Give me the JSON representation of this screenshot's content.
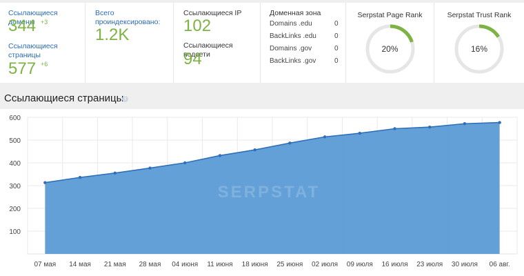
{
  "summary": {
    "referring_domains": {
      "label": "Ссылающиеся домены",
      "value": "344",
      "delta": "+3"
    },
    "referring_pages": {
      "label": "Ссылающиеся страницы",
      "value": "577",
      "delta": "+6"
    },
    "total_indexed": {
      "label": "Всего проиндексировано:",
      "value": "1.2K"
    },
    "referring_ips": {
      "label": "Ссылающиеся IP",
      "value": "102"
    },
    "referring_subnets": {
      "label": "Ссылающиеся подсети",
      "value": "94"
    },
    "domain_zone": {
      "title": "Доменная зона",
      "rows": [
        {
          "label": "Domains .edu",
          "value": "0"
        },
        {
          "label": "BackLinks .edu",
          "value": "0"
        },
        {
          "label": "Domains .gov",
          "value": "0"
        },
        {
          "label": "BackLinks .gov",
          "value": "0"
        }
      ]
    },
    "page_rank": {
      "title": "Serpstat Page Rank",
      "value_text": "20%",
      "value": 0.2
    },
    "trust_rank": {
      "title": "Serpstat Trust Rank",
      "value_text": "16%",
      "value": 0.16
    }
  },
  "section": {
    "title": "Ссылающиеся страницы",
    "info_icon": "info-icon"
  },
  "colors": {
    "green": "#7cb342",
    "blue_label": "#2a6cb6",
    "area_fill": "#5b9bd5",
    "line": "#2e6fba",
    "ring_track": "#e6e6e6"
  },
  "chart_data": {
    "type": "area",
    "watermark": "SERPSTAT",
    "categories": [
      "07 мая",
      "14 мая",
      "21 мая",
      "28 мая",
      "04 июня",
      "11 июня",
      "18 июня",
      "25 июня",
      "02 июля",
      "09 июля",
      "16 июля",
      "23 июля",
      "30 июля",
      "06 авг."
    ],
    "values": [
      313,
      336,
      355,
      377,
      400,
      432,
      457,
      487,
      514,
      530,
      550,
      557,
      572,
      577
    ],
    "ylim": [
      0,
      600
    ],
    "yticks": [
      100,
      200,
      300,
      400,
      500,
      600
    ],
    "grid": true
  }
}
